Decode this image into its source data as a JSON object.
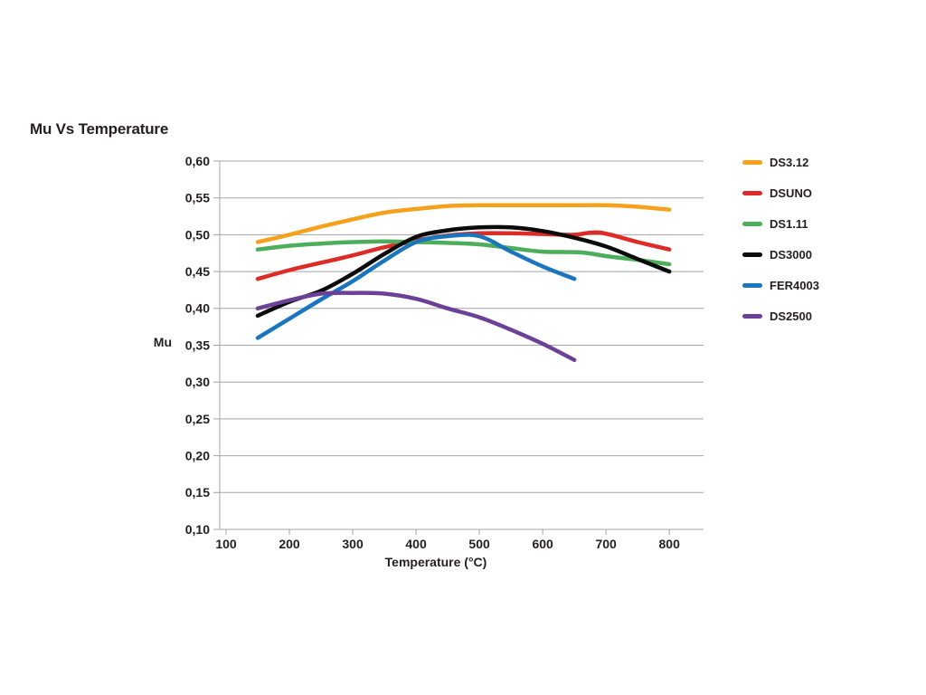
{
  "page": {
    "background": "#ffffff"
  },
  "chart_data": {
    "type": "line",
    "title": "Mu Vs Temperature",
    "xlabel": "Temperature (°C)",
    "ylabel": "Mu",
    "xlim": [
      90,
      854
    ],
    "ylim": [
      0.1,
      0.6
    ],
    "grid": "horizontal",
    "legend_position": "right-outside",
    "colors": {
      "axis": "#a2a4a7",
      "text": "#231f20",
      "background": "#ffffff"
    },
    "x_ticks": [
      {
        "v": 100,
        "label": "100"
      },
      {
        "v": 200,
        "label": "200"
      },
      {
        "v": 300,
        "label": "300"
      },
      {
        "v": 400,
        "label": "400"
      },
      {
        "v": 500,
        "label": "500"
      },
      {
        "v": 600,
        "label": "600"
      },
      {
        "v": 700,
        "label": "700"
      },
      {
        "v": 800,
        "label": "800"
      }
    ],
    "y_ticks": [
      {
        "v": 0.6,
        "label": "0,60"
      },
      {
        "v": 0.55,
        "label": "0,55"
      },
      {
        "v": 0.5,
        "label": "0,50"
      },
      {
        "v": 0.45,
        "label": "0,45"
      },
      {
        "v": 0.4,
        "label": "0,40"
      },
      {
        "v": 0.35,
        "label": "0,35"
      },
      {
        "v": 0.3,
        "label": "0,30"
      },
      {
        "v": 0.25,
        "label": "0,25"
      },
      {
        "v": 0.2,
        "label": "0,20"
      },
      {
        "v": 0.15,
        "label": "0,15"
      },
      {
        "v": 0.1,
        "label": "0,10"
      }
    ],
    "series": [
      {
        "name": "DS3.12",
        "color": "#F5A11C",
        "points": [
          [
            150,
            0.49
          ],
          [
            200,
            0.5
          ],
          [
            250,
            0.511
          ],
          [
            300,
            0.521
          ],
          [
            350,
            0.53
          ],
          [
            400,
            0.535
          ],
          [
            450,
            0.539
          ],
          [
            500,
            0.54
          ],
          [
            550,
            0.54
          ],
          [
            600,
            0.54
          ],
          [
            650,
            0.54
          ],
          [
            700,
            0.54
          ],
          [
            750,
            0.538
          ],
          [
            800,
            0.534
          ]
        ]
      },
      {
        "name": "DSUNO",
        "color": "#DD2C27",
        "points": [
          [
            150,
            0.44
          ],
          [
            200,
            0.452
          ],
          [
            250,
            0.462
          ],
          [
            300,
            0.472
          ],
          [
            350,
            0.483
          ],
          [
            400,
            0.492
          ],
          [
            450,
            0.499
          ],
          [
            500,
            0.502
          ],
          [
            550,
            0.502
          ],
          [
            600,
            0.501
          ],
          [
            650,
            0.5
          ],
          [
            690,
            0.503
          ],
          [
            750,
            0.49
          ],
          [
            800,
            0.48
          ]
        ]
      },
      {
        "name": "DS1.11",
        "color": "#4CAD5A",
        "points": [
          [
            150,
            0.48
          ],
          [
            200,
            0.485
          ],
          [
            250,
            0.488
          ],
          [
            300,
            0.49
          ],
          [
            350,
            0.491
          ],
          [
            400,
            0.49
          ],
          [
            450,
            0.489
          ],
          [
            500,
            0.487
          ],
          [
            550,
            0.482
          ],
          [
            600,
            0.477
          ],
          [
            660,
            0.476
          ],
          [
            700,
            0.471
          ],
          [
            750,
            0.466
          ],
          [
            800,
            0.46
          ]
        ]
      },
      {
        "name": "DS3000",
        "color": "#0b0b0b",
        "points": [
          [
            150,
            0.39
          ],
          [
            200,
            0.409
          ],
          [
            250,
            0.424
          ],
          [
            300,
            0.447
          ],
          [
            350,
            0.474
          ],
          [
            400,
            0.497
          ],
          [
            450,
            0.506
          ],
          [
            500,
            0.51
          ],
          [
            550,
            0.51
          ],
          [
            600,
            0.505
          ],
          [
            650,
            0.496
          ],
          [
            700,
            0.484
          ],
          [
            750,
            0.467
          ],
          [
            800,
            0.45
          ]
        ]
      },
      {
        "name": "FER4003",
        "color": "#1B75BC",
        "points": [
          [
            150,
            0.36
          ],
          [
            200,
            0.386
          ],
          [
            250,
            0.412
          ],
          [
            300,
            0.437
          ],
          [
            350,
            0.465
          ],
          [
            400,
            0.49
          ],
          [
            450,
            0.498
          ],
          [
            500,
            0.498
          ],
          [
            550,
            0.477
          ],
          [
            600,
            0.457
          ],
          [
            650,
            0.44
          ]
        ]
      },
      {
        "name": "DS2500",
        "color": "#6B4097",
        "points": [
          [
            150,
            0.4
          ],
          [
            200,
            0.411
          ],
          [
            250,
            0.42
          ],
          [
            300,
            0.421
          ],
          [
            350,
            0.42
          ],
          [
            400,
            0.413
          ],
          [
            450,
            0.4
          ],
          [
            500,
            0.388
          ],
          [
            550,
            0.371
          ],
          [
            600,
            0.352
          ],
          [
            650,
            0.33
          ]
        ]
      }
    ]
  }
}
